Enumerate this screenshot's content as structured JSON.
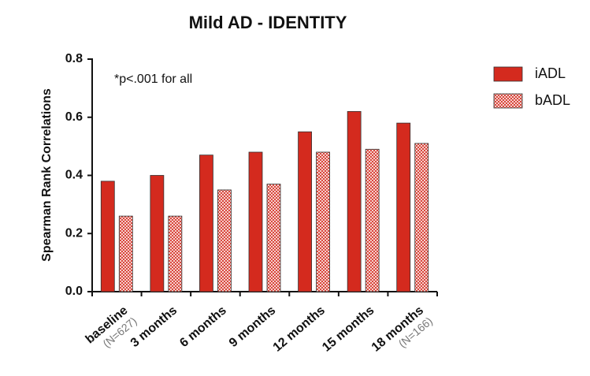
{
  "chart_data": {
    "type": "bar",
    "title": "Mild AD - IDENTITY",
    "y_label": "Spearman  Rank  Correlations",
    "annotation": "*p<.001 for all",
    "categories": [
      "baseline",
      "3 months",
      "6 months",
      "9 months",
      "12 months",
      "15 months",
      "18 months"
    ],
    "category_sublabels": [
      "(N=627)",
      null,
      null,
      null,
      null,
      null,
      "(N=166)"
    ],
    "series": [
      {
        "name": "iADL",
        "color": "#d42a1e",
        "values": [
          0.38,
          0.4,
          0.47,
          0.48,
          0.55,
          0.62,
          0.58
        ]
      },
      {
        "name": "bADL",
        "color": "#d9473d",
        "pattern": "checkerboard",
        "values": [
          0.26,
          0.26,
          0.35,
          0.37,
          0.48,
          0.49,
          0.51
        ]
      }
    ],
    "ylim": [
      0,
      0.8
    ],
    "yticks": [
      {
        "value": 0,
        "label": "0.0"
      },
      0.2,
      0.4,
      0.6,
      0.8
    ],
    "legend": "right"
  }
}
